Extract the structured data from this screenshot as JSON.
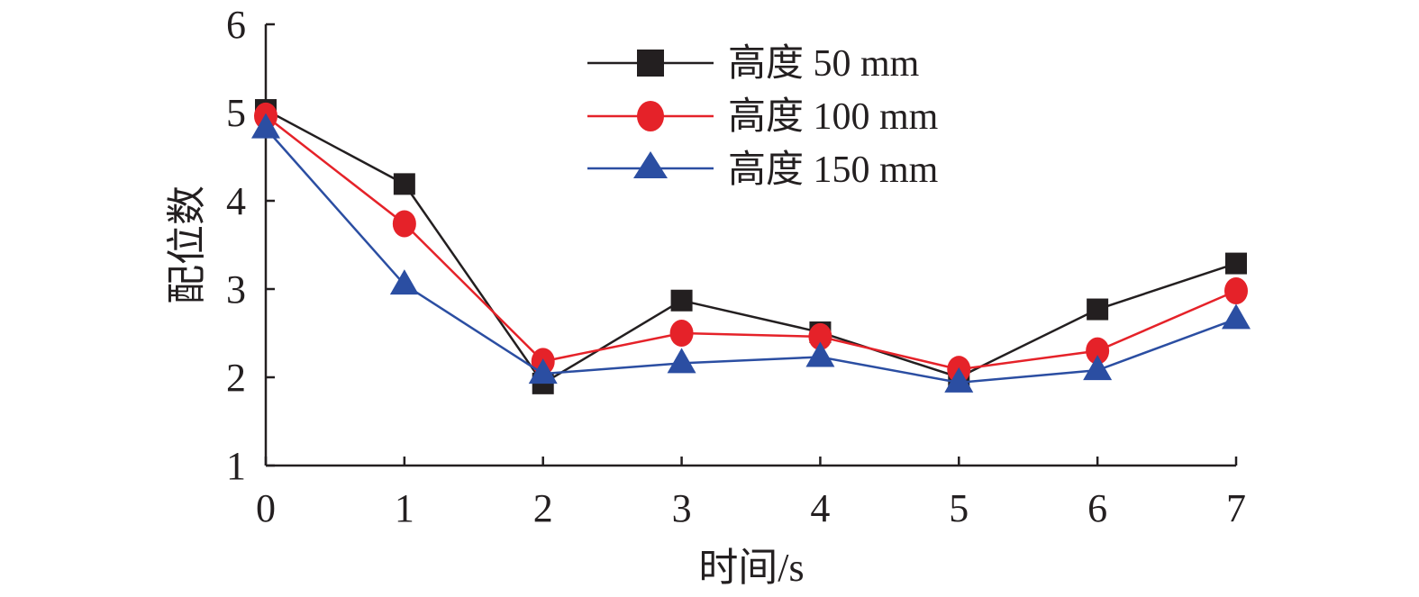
{
  "chart_data": {
    "type": "line",
    "xlabel": "时间/s",
    "ylabel": "配位数",
    "xlim": [
      0,
      7
    ],
    "ylim": [
      1,
      6
    ],
    "x_ticks": [
      "0",
      "1",
      "2",
      "3",
      "4",
      "5",
      "6",
      "7"
    ],
    "y_ticks": [
      "1",
      "2",
      "3",
      "4",
      "5",
      "6"
    ],
    "grid": false,
    "legend_position": "top-center",
    "x": [
      0,
      1,
      2,
      3,
      4,
      5,
      6,
      7
    ],
    "series": [
      {
        "name": "高度 50 mm",
        "marker": "square",
        "color": "#231f20",
        "values": [
          5.03,
          4.19,
          1.93,
          2.87,
          2.51,
          2.0,
          2.77,
          3.29
        ]
      },
      {
        "name": "高度 100 mm",
        "marker": "circle",
        "color": "#e52229",
        "values": [
          4.96,
          3.74,
          2.18,
          2.5,
          2.46,
          2.09,
          2.3,
          2.98
        ]
      },
      {
        "name": "高度 150 mm",
        "marker": "triangle",
        "color": "#2b4ea2",
        "values": [
          4.82,
          3.05,
          2.04,
          2.16,
          2.23,
          1.94,
          2.08,
          2.66
        ]
      }
    ]
  }
}
